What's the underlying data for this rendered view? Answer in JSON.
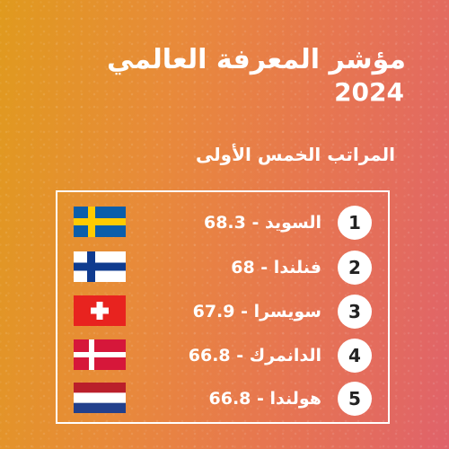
{
  "header": {
    "title": "مؤشر المعرفة العالمي",
    "year": "2024",
    "subtitle": "المراتب الخمس الأولى"
  },
  "rankings": [
    {
      "rank": "1",
      "label": "السويد - 68.3",
      "flag": "sweden-flag-icon"
    },
    {
      "rank": "2",
      "label": "فنلندا - 68",
      "flag": "finland-flag-icon"
    },
    {
      "rank": "3",
      "label": "سويسرا - 67.9",
      "flag": "switzerland-flag-icon"
    },
    {
      "rank": "4",
      "label": "الدانمرك - 66.8",
      "flag": "denmark-flag-icon"
    },
    {
      "rank": "5",
      "label": "هولندا - 66.8",
      "flag": "netherlands-flag-icon"
    }
  ],
  "colors": {
    "background_start": "#e09a1e",
    "background_end": "#e0626a",
    "text": "#ffffff"
  }
}
